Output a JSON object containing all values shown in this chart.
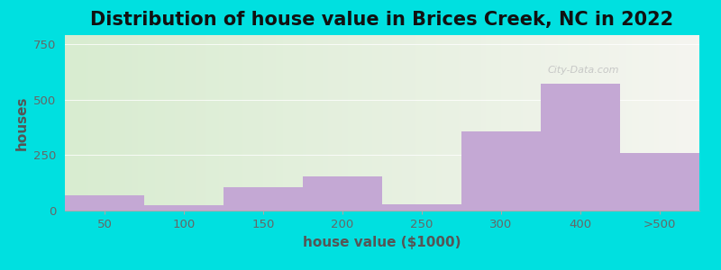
{
  "title": "Distribution of house value in Brices Creek, NC in 2022",
  "xlabel": "house value ($1000)",
  "ylabel": "houses",
  "bar_labels": [
    "50",
    "100",
    "150",
    "200",
    "250",
    "300",
    "400",
    ">500"
  ],
  "values": [
    68,
    25,
    105,
    155,
    28,
    355,
    570,
    260
  ],
  "bar_color": "#c4a8d4",
  "ylim": [
    0,
    790
  ],
  "yticks": [
    0,
    250,
    500,
    750
  ],
  "background_outer": "#00e0e0",
  "background_inner_left": "#d8ecd0",
  "background_inner_right": "#f5f5f0",
  "title_fontsize": 15,
  "axis_label_fontsize": 11,
  "watermark_text": "City-Data.com",
  "figsize": [
    8.0,
    3.0
  ],
  "dpi": 100
}
